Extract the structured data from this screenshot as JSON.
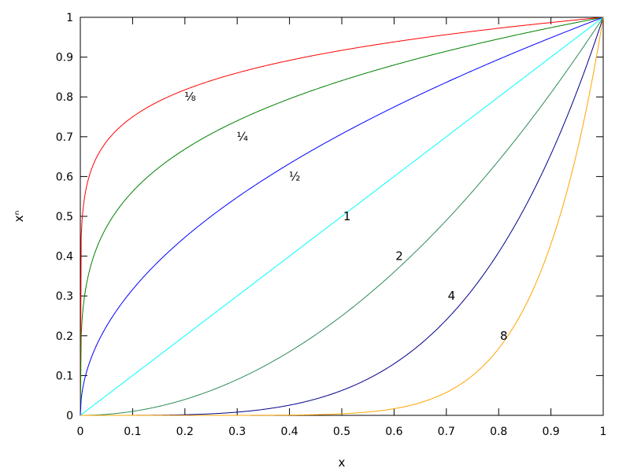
{
  "chart_data": {
    "type": "line",
    "xlabel": "x",
    "ylabel": "xⁿ",
    "xlim": [
      0,
      1
    ],
    "ylim": [
      0,
      1
    ],
    "x_ticks": [
      "0",
      "0.1",
      "0.2",
      "0.3",
      "0.4",
      "0.5",
      "0.6",
      "0.7",
      "0.8",
      "0.9",
      "1"
    ],
    "y_ticks": [
      "0",
      "0.1",
      "0.2",
      "0.3",
      "0.4",
      "0.5",
      "0.6",
      "0.7",
      "0.8",
      "0.9",
      "1"
    ],
    "grid": false,
    "series": [
      {
        "label": "⅛",
        "exponent": 0.125,
        "color": "#ff0000",
        "label_at": [
          0.21,
          0.8
        ]
      },
      {
        "label": "¼",
        "exponent": 0.25,
        "color": "#008000",
        "label_at": [
          0.31,
          0.7
        ]
      },
      {
        "label": "½",
        "exponent": 0.5,
        "color": "#0000ff",
        "label_at": [
          0.41,
          0.6
        ]
      },
      {
        "label": "1",
        "exponent": 1,
        "color": "#00ffff",
        "label_at": [
          0.51,
          0.5
        ]
      },
      {
        "label": "2",
        "exponent": 2,
        "color": "#2e8b57",
        "label_at": [
          0.61,
          0.4
        ]
      },
      {
        "label": "4",
        "exponent": 4,
        "color": "#00008b",
        "label_at": [
          0.71,
          0.3
        ]
      },
      {
        "label": "8",
        "exponent": 8,
        "color": "#ffa500",
        "label_at": [
          0.81,
          0.2
        ]
      }
    ]
  }
}
